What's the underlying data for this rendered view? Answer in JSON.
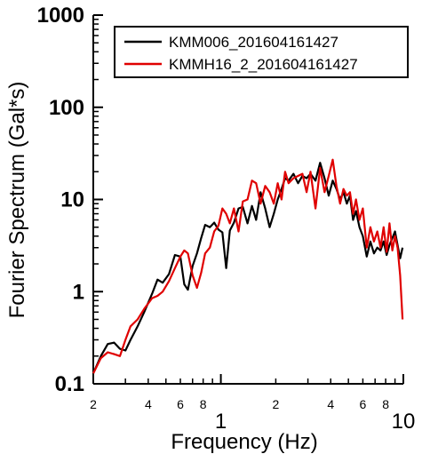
{
  "chart_data": {
    "type": "line",
    "title": "",
    "xlabel": "Frequency (Hz)",
    "ylabel": "Fourier Spectrum (Gal*s)",
    "x_scale": "log",
    "y_scale": "log",
    "xlim": [
      0.2,
      10
    ],
    "ylim": [
      0.1,
      1000
    ],
    "grid": false,
    "legend_position": "top-right",
    "y_ticks": [
      {
        "value": 0.1,
        "label": "0.1"
      },
      {
        "value": 1,
        "label": "1"
      },
      {
        "value": 10,
        "label": "10"
      },
      {
        "value": 100,
        "label": "100"
      },
      {
        "value": 1000,
        "label": "1000"
      }
    ],
    "x_major_ticks": [
      {
        "value": 1,
        "label": "1"
      },
      {
        "value": 10,
        "label": "10"
      }
    ],
    "x_minor_ticks": [
      {
        "value": 0.2,
        "label": "2"
      },
      {
        "value": 0.3,
        "label": ""
      },
      {
        "value": 0.4,
        "label": "4"
      },
      {
        "value": 0.5,
        "label": ""
      },
      {
        "value": 0.6,
        "label": "6"
      },
      {
        "value": 0.7,
        "label": ""
      },
      {
        "value": 0.8,
        "label": "8"
      },
      {
        "value": 0.9,
        "label": ""
      },
      {
        "value": 2,
        "label": "2"
      },
      {
        "value": 3,
        "label": ""
      },
      {
        "value": 4,
        "label": "4"
      },
      {
        "value": 5,
        "label": ""
      },
      {
        "value": 6,
        "label": "6"
      },
      {
        "value": 7,
        "label": ""
      },
      {
        "value": 8,
        "label": "8"
      },
      {
        "value": 9,
        "label": ""
      }
    ],
    "series": [
      {
        "name": "KMM006_201604161427",
        "color": "#000000",
        "x": [
          0.2,
          0.22,
          0.24,
          0.26,
          0.28,
          0.3,
          0.32,
          0.35,
          0.38,
          0.42,
          0.45,
          0.48,
          0.52,
          0.56,
          0.6,
          0.63,
          0.66,
          0.7,
          0.74,
          0.78,
          0.82,
          0.87,
          0.92,
          0.97,
          1.02,
          1.07,
          1.12,
          1.18,
          1.25,
          1.32,
          1.4,
          1.48,
          1.56,
          1.65,
          1.75,
          1.85,
          1.95,
          2.05,
          2.15,
          2.25,
          2.35,
          2.5,
          2.65,
          2.8,
          2.95,
          3.1,
          3.3,
          3.5,
          3.7,
          3.9,
          4.1,
          4.3,
          4.5,
          4.7,
          4.9,
          5.1,
          5.3,
          5.5,
          5.75,
          6.0,
          6.3,
          6.6,
          6.9,
          7.2,
          7.5,
          7.8,
          8.1,
          8.4,
          8.7,
          9.0,
          9.3,
          9.6,
          9.9
        ],
        "values": [
          0.13,
          0.2,
          0.27,
          0.28,
          0.24,
          0.23,
          0.3,
          0.42,
          0.6,
          0.95,
          1.35,
          1.25,
          1.55,
          2.5,
          2.4,
          1.2,
          1.05,
          1.9,
          2.6,
          3.8,
          5.3,
          5.0,
          5.6,
          4.7,
          4.4,
          1.8,
          4.6,
          5.6,
          8.0,
          8.3,
          5.5,
          8.5,
          6.0,
          12.0,
          8.0,
          5.0,
          7.0,
          10.0,
          13.0,
          17.0,
          16.0,
          19.0,
          15.0,
          18.0,
          17.0,
          19.0,
          16.0,
          25.0,
          17.0,
          11.0,
          16.0,
          13.0,
          10.0,
          12.0,
          9.0,
          11.0,
          6.0,
          7.5,
          5.0,
          4.0,
          2.4,
          3.5,
          2.6,
          3.0,
          2.8,
          3.5,
          2.5,
          3.2,
          3.8,
          4.5,
          3.2,
          2.3,
          3.0
        ]
      },
      {
        "name": "KMMH16_2_201604161427",
        "color": "#e00000",
        "x": [
          0.2,
          0.22,
          0.24,
          0.26,
          0.28,
          0.3,
          0.32,
          0.35,
          0.38,
          0.42,
          0.45,
          0.48,
          0.52,
          0.56,
          0.6,
          0.63,
          0.66,
          0.7,
          0.74,
          0.78,
          0.82,
          0.87,
          0.92,
          0.97,
          1.02,
          1.07,
          1.12,
          1.18,
          1.25,
          1.32,
          1.4,
          1.48,
          1.56,
          1.65,
          1.75,
          1.85,
          1.95,
          2.05,
          2.15,
          2.25,
          2.35,
          2.5,
          2.65,
          2.8,
          2.95,
          3.1,
          3.3,
          3.5,
          3.7,
          3.9,
          4.1,
          4.3,
          4.5,
          4.7,
          4.9,
          5.1,
          5.3,
          5.5,
          5.75,
          6.0,
          6.3,
          6.6,
          6.9,
          7.2,
          7.5,
          7.8,
          8.1,
          8.4,
          8.7,
          9.0,
          9.3,
          9.6,
          9.9
        ],
        "values": [
          0.13,
          0.19,
          0.22,
          0.21,
          0.2,
          0.3,
          0.42,
          0.5,
          0.65,
          0.85,
          0.9,
          1.0,
          1.3,
          1.8,
          2.4,
          2.8,
          2.6,
          1.5,
          1.1,
          1.6,
          2.6,
          3.0,
          4.5,
          5.2,
          8.0,
          7.0,
          5.5,
          8.0,
          4.5,
          9.5,
          10.0,
          16.0,
          15.0,
          9.0,
          14.0,
          12.0,
          9.0,
          15.0,
          10.0,
          20.0,
          15.0,
          17.0,
          18.0,
          19.0,
          12.0,
          20.0,
          8.0,
          22.0,
          12.0,
          18.0,
          27.0,
          14.0,
          9.0,
          13.0,
          11.0,
          12.0,
          7.0,
          10.0,
          6.0,
          8.0,
          3.0,
          5.0,
          3.5,
          4.5,
          3.0,
          5.0,
          2.7,
          5.5,
          2.8,
          4.0,
          3.0,
          1.5,
          0.5
        ]
      }
    ]
  }
}
